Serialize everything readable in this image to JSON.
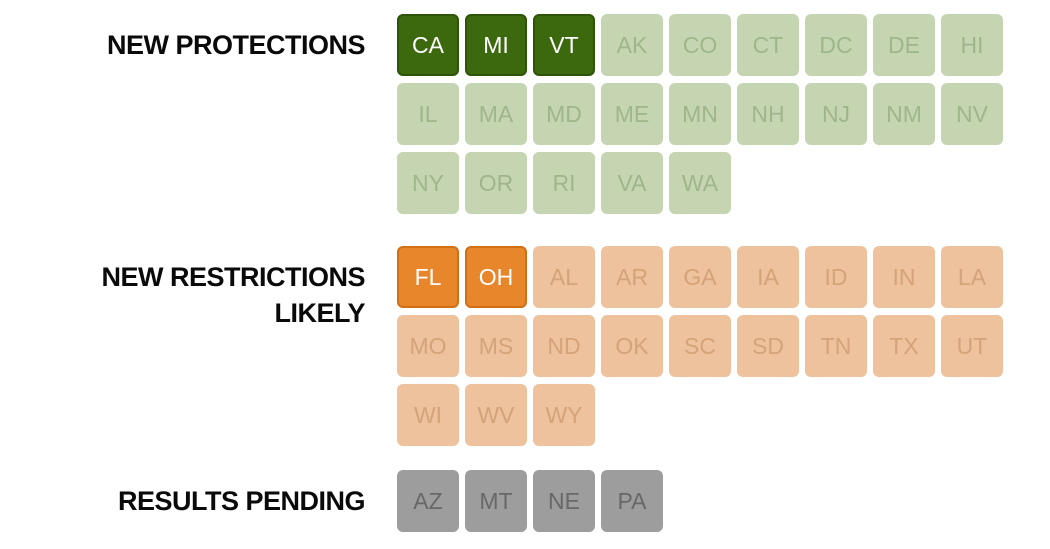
{
  "figure": {
    "background": "#ffffff"
  },
  "sections": [
    {
      "id": "new-protections",
      "label": "NEW PROTECTIONS",
      "label_lines": [
        "NEW PROTECTIONS"
      ],
      "colors": {
        "active_bg": "#3c690e",
        "active_border": "#2d5407",
        "active_text": "#ffffff",
        "inactive_bg": "#c6d5b1",
        "inactive_text": "#9fb58b"
      },
      "states": [
        {
          "code": "CA",
          "active": true
        },
        {
          "code": "MI",
          "active": true
        },
        {
          "code": "VT",
          "active": true
        },
        {
          "code": "AK",
          "active": false
        },
        {
          "code": "CO",
          "active": false
        },
        {
          "code": "CT",
          "active": false
        },
        {
          "code": "DC",
          "active": false
        },
        {
          "code": "DE",
          "active": false
        },
        {
          "code": "HI",
          "active": false
        },
        {
          "code": "IL",
          "active": false
        },
        {
          "code": "MA",
          "active": false
        },
        {
          "code": "MD",
          "active": false
        },
        {
          "code": "ME",
          "active": false
        },
        {
          "code": "MN",
          "active": false
        },
        {
          "code": "NH",
          "active": false
        },
        {
          "code": "NJ",
          "active": false
        },
        {
          "code": "NM",
          "active": false
        },
        {
          "code": "NV",
          "active": false
        },
        {
          "code": "NY",
          "active": false
        },
        {
          "code": "OR",
          "active": false
        },
        {
          "code": "RI",
          "active": false
        },
        {
          "code": "VA",
          "active": false
        },
        {
          "code": "WA",
          "active": false
        }
      ]
    },
    {
      "id": "new-restrictions-likely",
      "label": "NEW RESTRICTIONS LIKELY",
      "label_lines": [
        "NEW RESTRICTIONS",
        "LIKELY"
      ],
      "colors": {
        "active_bg": "#e8862c",
        "active_border": "#d06f14",
        "active_text": "#ffffff",
        "inactive_bg": "#eec29d",
        "inactive_text": "#d4a379"
      },
      "states": [
        {
          "code": "FL",
          "active": true
        },
        {
          "code": "OH",
          "active": true
        },
        {
          "code": "AL",
          "active": false
        },
        {
          "code": "AR",
          "active": false
        },
        {
          "code": "GA",
          "active": false
        },
        {
          "code": "IA",
          "active": false
        },
        {
          "code": "ID",
          "active": false
        },
        {
          "code": "IN",
          "active": false
        },
        {
          "code": "LA",
          "active": false
        },
        {
          "code": "MO",
          "active": false
        },
        {
          "code": "MS",
          "active": false
        },
        {
          "code": "ND",
          "active": false
        },
        {
          "code": "OK",
          "active": false
        },
        {
          "code": "SC",
          "active": false
        },
        {
          "code": "SD",
          "active": false
        },
        {
          "code": "TN",
          "active": false
        },
        {
          "code": "TX",
          "active": false
        },
        {
          "code": "UT",
          "active": false
        },
        {
          "code": "WI",
          "active": false
        },
        {
          "code": "WV",
          "active": false
        },
        {
          "code": "WY",
          "active": false
        }
      ]
    },
    {
      "id": "results-pending",
      "label": "RESULTS PENDING",
      "label_lines": [
        "RESULTS PENDING"
      ],
      "colors": {
        "active_bg": "#9d9d9d",
        "active_border": "#8a8a8a",
        "active_text": "#ffffff",
        "inactive_bg": "#9d9d9d",
        "inactive_text": "#686868"
      },
      "states": [
        {
          "code": "AZ",
          "active": false
        },
        {
          "code": "MT",
          "active": false
        },
        {
          "code": "NE",
          "active": false
        },
        {
          "code": "PA",
          "active": false
        }
      ]
    }
  ],
  "chart_data": {
    "type": "table",
    "grid": false,
    "legend_position": "left",
    "groups": [
      {
        "label": "NEW PROTECTIONS",
        "color": "#3c690e",
        "muted_color": "#c6d5b1",
        "highlighted_states": [
          "CA",
          "MI",
          "VT"
        ],
        "other_states": [
          "AK",
          "CO",
          "CT",
          "DC",
          "DE",
          "HI",
          "IL",
          "MA",
          "MD",
          "ME",
          "MN",
          "NH",
          "NJ",
          "NM",
          "NV",
          "NY",
          "OR",
          "RI",
          "VA",
          "WA"
        ]
      },
      {
        "label": "NEW RESTRICTIONS LIKELY",
        "color": "#e8862c",
        "muted_color": "#eec29d",
        "highlighted_states": [
          "FL",
          "OH"
        ],
        "other_states": [
          "AL",
          "AR",
          "GA",
          "IA",
          "ID",
          "IN",
          "LA",
          "MO",
          "MS",
          "ND",
          "OK",
          "SC",
          "SD",
          "TN",
          "TX",
          "UT",
          "WI",
          "WV",
          "WY"
        ]
      },
      {
        "label": "RESULTS PENDING",
        "color": "#9d9d9d",
        "muted_color": "#9d9d9d",
        "highlighted_states": [],
        "other_states": [
          "AZ",
          "MT",
          "NE",
          "PA"
        ]
      }
    ]
  }
}
